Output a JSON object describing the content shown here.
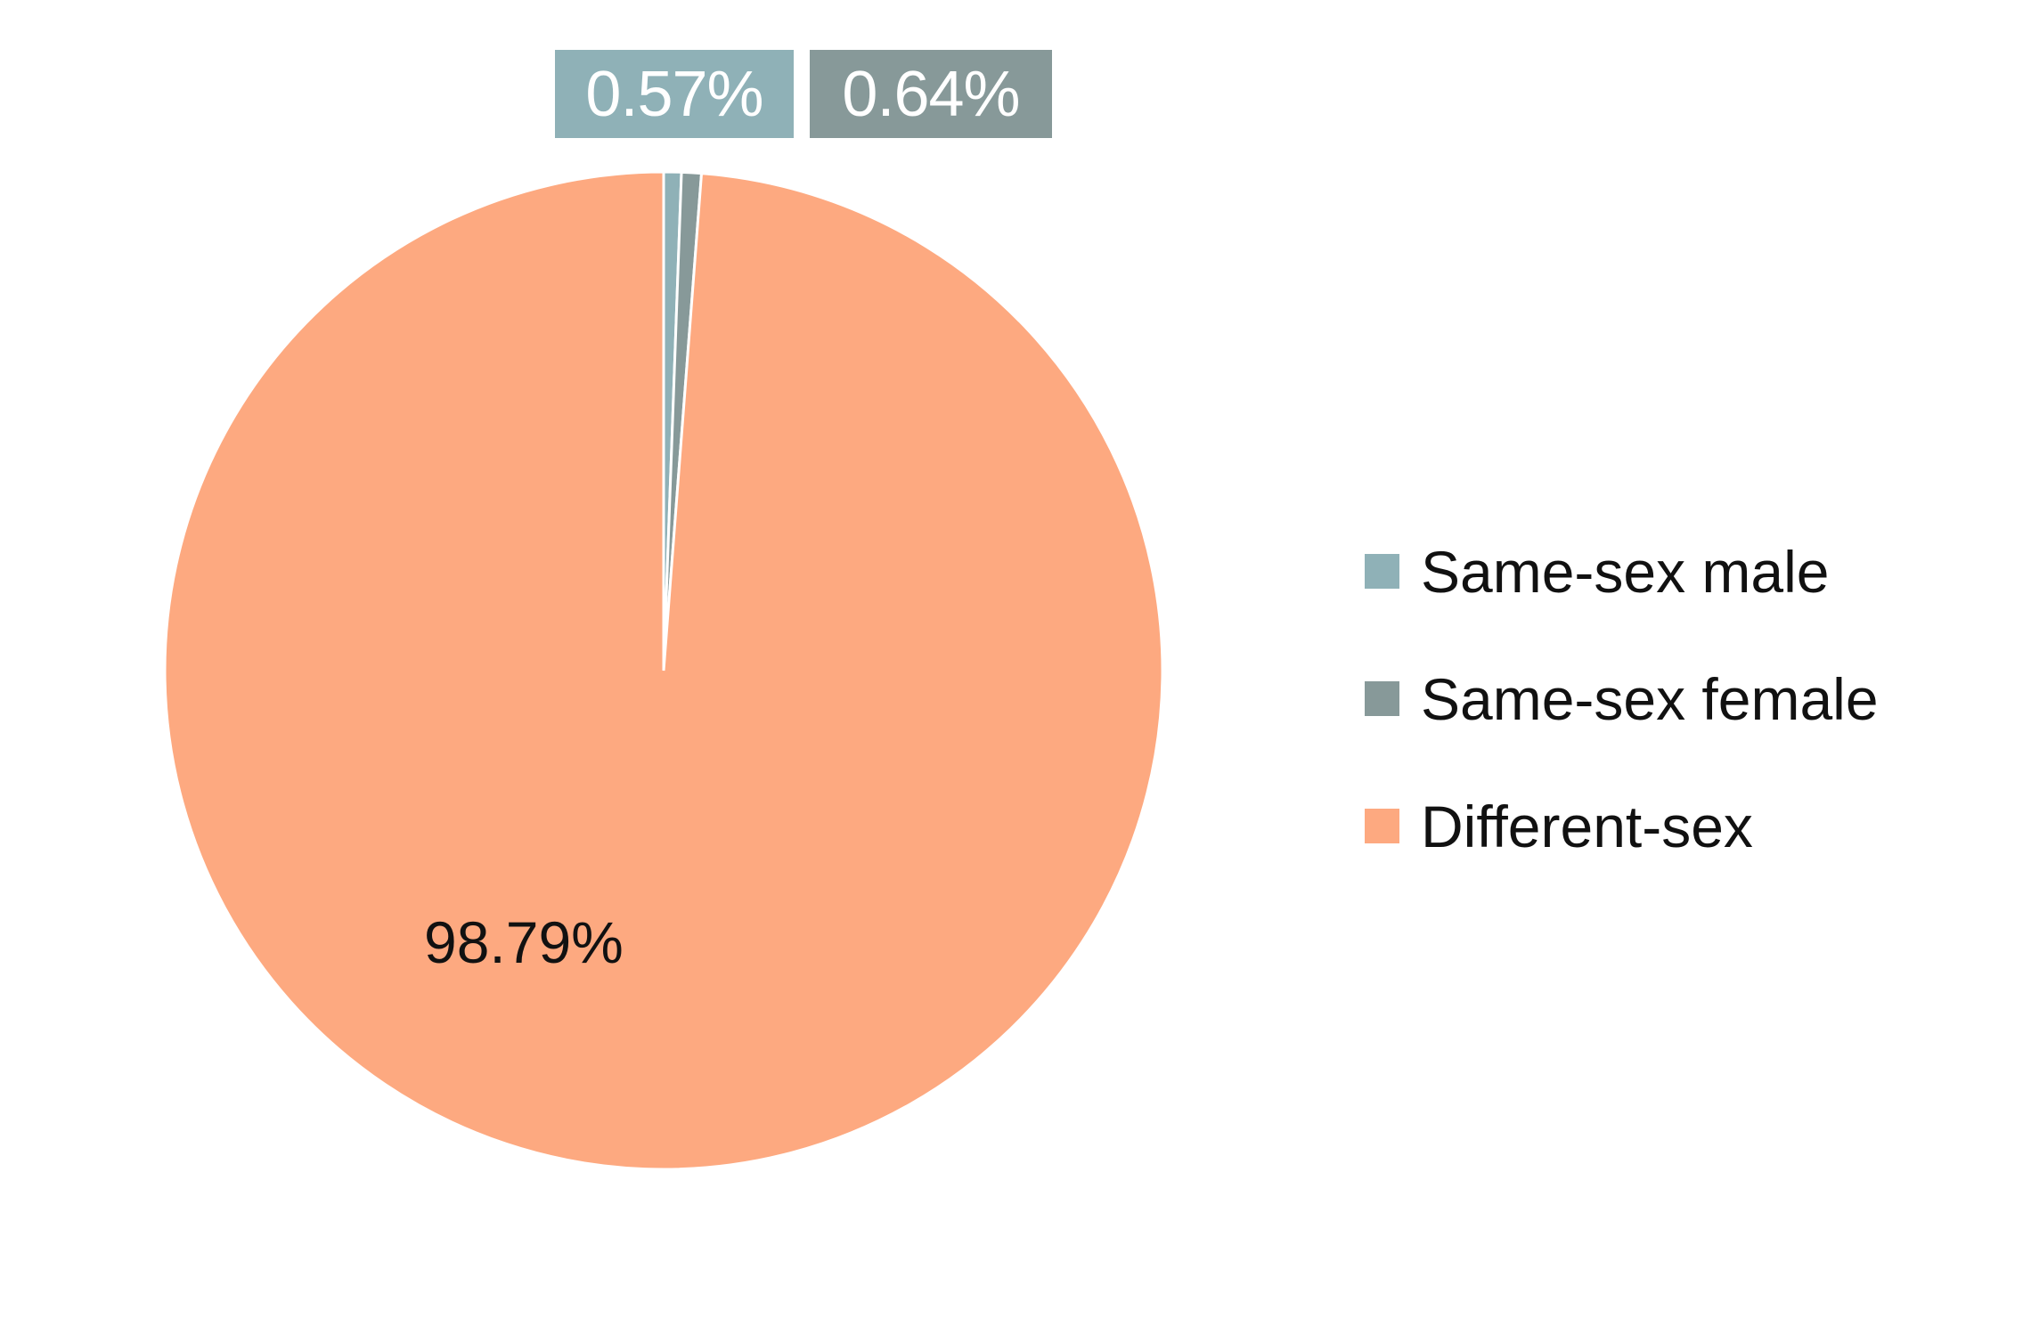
{
  "chart_data": {
    "type": "pie",
    "title": "",
    "start_angle": "top, clockwise",
    "slices": [
      {
        "name": "Same-sex male",
        "value": 0.57,
        "label": "0.57%",
        "color": "#8fb1b7"
      },
      {
        "name": "Same-sex female",
        "value": 0.64,
        "label": "0.64%",
        "color": "#879999"
      },
      {
        "name": "Different-sex",
        "value": 98.79,
        "label": "98.79%",
        "color": "#fda980"
      }
    ],
    "legend": {
      "placement": "right",
      "entries": [
        "Same-sex male",
        "Same-sex female",
        "Different-sex"
      ]
    }
  }
}
